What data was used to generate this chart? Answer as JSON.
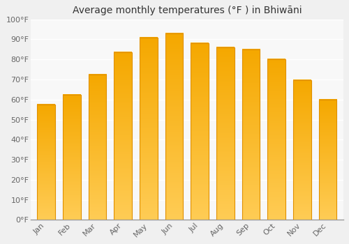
{
  "title": "Average monthly temperatures (°F ) in Bhiwāni",
  "months": [
    "Jan",
    "Feb",
    "Mar",
    "Apr",
    "May",
    "Jun",
    "Jul",
    "Aug",
    "Sep",
    "Oct",
    "Nov",
    "Dec"
  ],
  "values": [
    57.5,
    62.5,
    72.5,
    83.5,
    91.0,
    93.0,
    88.0,
    86.0,
    85.0,
    80.0,
    69.5,
    60.0
  ],
  "bar_color_top": "#F5A800",
  "bar_color_bottom": "#FFCC55",
  "bar_edge_color": "#E09000",
  "background_color": "#F0F0F0",
  "plot_bg_color": "#F8F8F8",
  "grid_color": "#FFFFFF",
  "ylim": [
    0,
    100
  ],
  "yticks": [
    0,
    10,
    20,
    30,
    40,
    50,
    60,
    70,
    80,
    90,
    100
  ],
  "ytick_labels": [
    "0°F",
    "10°F",
    "20°F",
    "30°F",
    "40°F",
    "50°F",
    "60°F",
    "70°F",
    "80°F",
    "90°F",
    "100°F"
  ],
  "title_fontsize": 10,
  "tick_fontsize": 8,
  "figsize": [
    5.0,
    3.5
  ],
  "dpi": 100,
  "bar_width": 0.7
}
